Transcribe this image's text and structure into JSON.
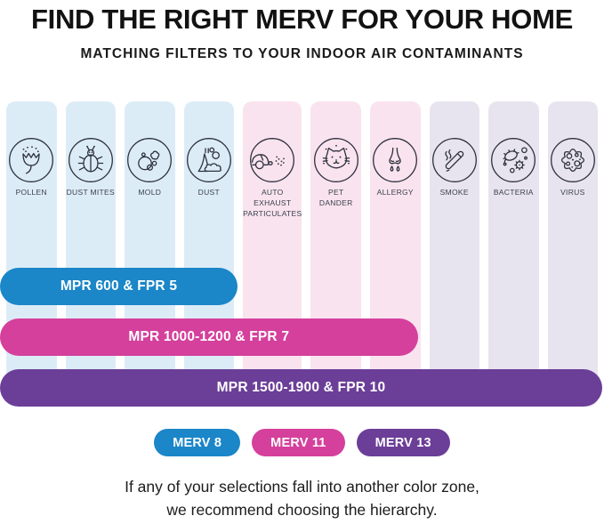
{
  "title": "FIND THE RIGHT MERV FOR YOUR HOME",
  "subtitle": "MATCHING FILTERS TO YOUR INDOOR AIR CONTAMINANTS",
  "colors": {
    "merv8_blue": "#1b86c8",
    "merv11_pink": "#d4409c",
    "merv13_purple": "#6b3e98",
    "column_blue": "#dcecf7",
    "column_pink": "#f9e3ef",
    "column_lavender": "#e8e4ef"
  },
  "contaminants": [
    {
      "label": "POLLEN",
      "icon": "pollen-icon",
      "zone": "blue"
    },
    {
      "label": "DUST MITES",
      "icon": "dust-mites-icon",
      "zone": "blue"
    },
    {
      "label": "MOLD",
      "icon": "mold-icon",
      "zone": "blue"
    },
    {
      "label": "DUST",
      "icon": "dust-icon",
      "zone": "blue"
    },
    {
      "label": "AUTO EXHAUST PARTICULATES",
      "icon": "auto-exhaust-icon",
      "zone": "pink"
    },
    {
      "label": "PET DANDER",
      "icon": "pet-dander-icon",
      "zone": "pink"
    },
    {
      "label": "ALLERGY",
      "icon": "allergy-icon",
      "zone": "pink"
    },
    {
      "label": "SMOKE",
      "icon": "smoke-icon",
      "zone": "lavender"
    },
    {
      "label": "BACTERIA",
      "icon": "bacteria-icon",
      "zone": "lavender"
    },
    {
      "label": "VIRUS",
      "icon": "virus-icon",
      "zone": "lavender"
    }
  ],
  "bars": [
    {
      "label": "MPR 600 & FPR 5",
      "color": "#1b86c8",
      "span_columns": 4
    },
    {
      "label": "MPR 1000-1200 & FPR 7",
      "color": "#d4409c",
      "span_columns": 7
    },
    {
      "label": "MPR 1500-1900 & FPR 10",
      "color": "#6b3e98",
      "span_columns": 10
    }
  ],
  "legend": [
    {
      "label": "MERV 8",
      "color": "#1b86c8"
    },
    {
      "label": "MERV 11",
      "color": "#d4409c"
    },
    {
      "label": "MERV 13",
      "color": "#6b3e98"
    }
  ],
  "footer": {
    "line1": "If any of your selections fall into another color zone,",
    "line2": "we recommend choosing the hierarchy."
  }
}
